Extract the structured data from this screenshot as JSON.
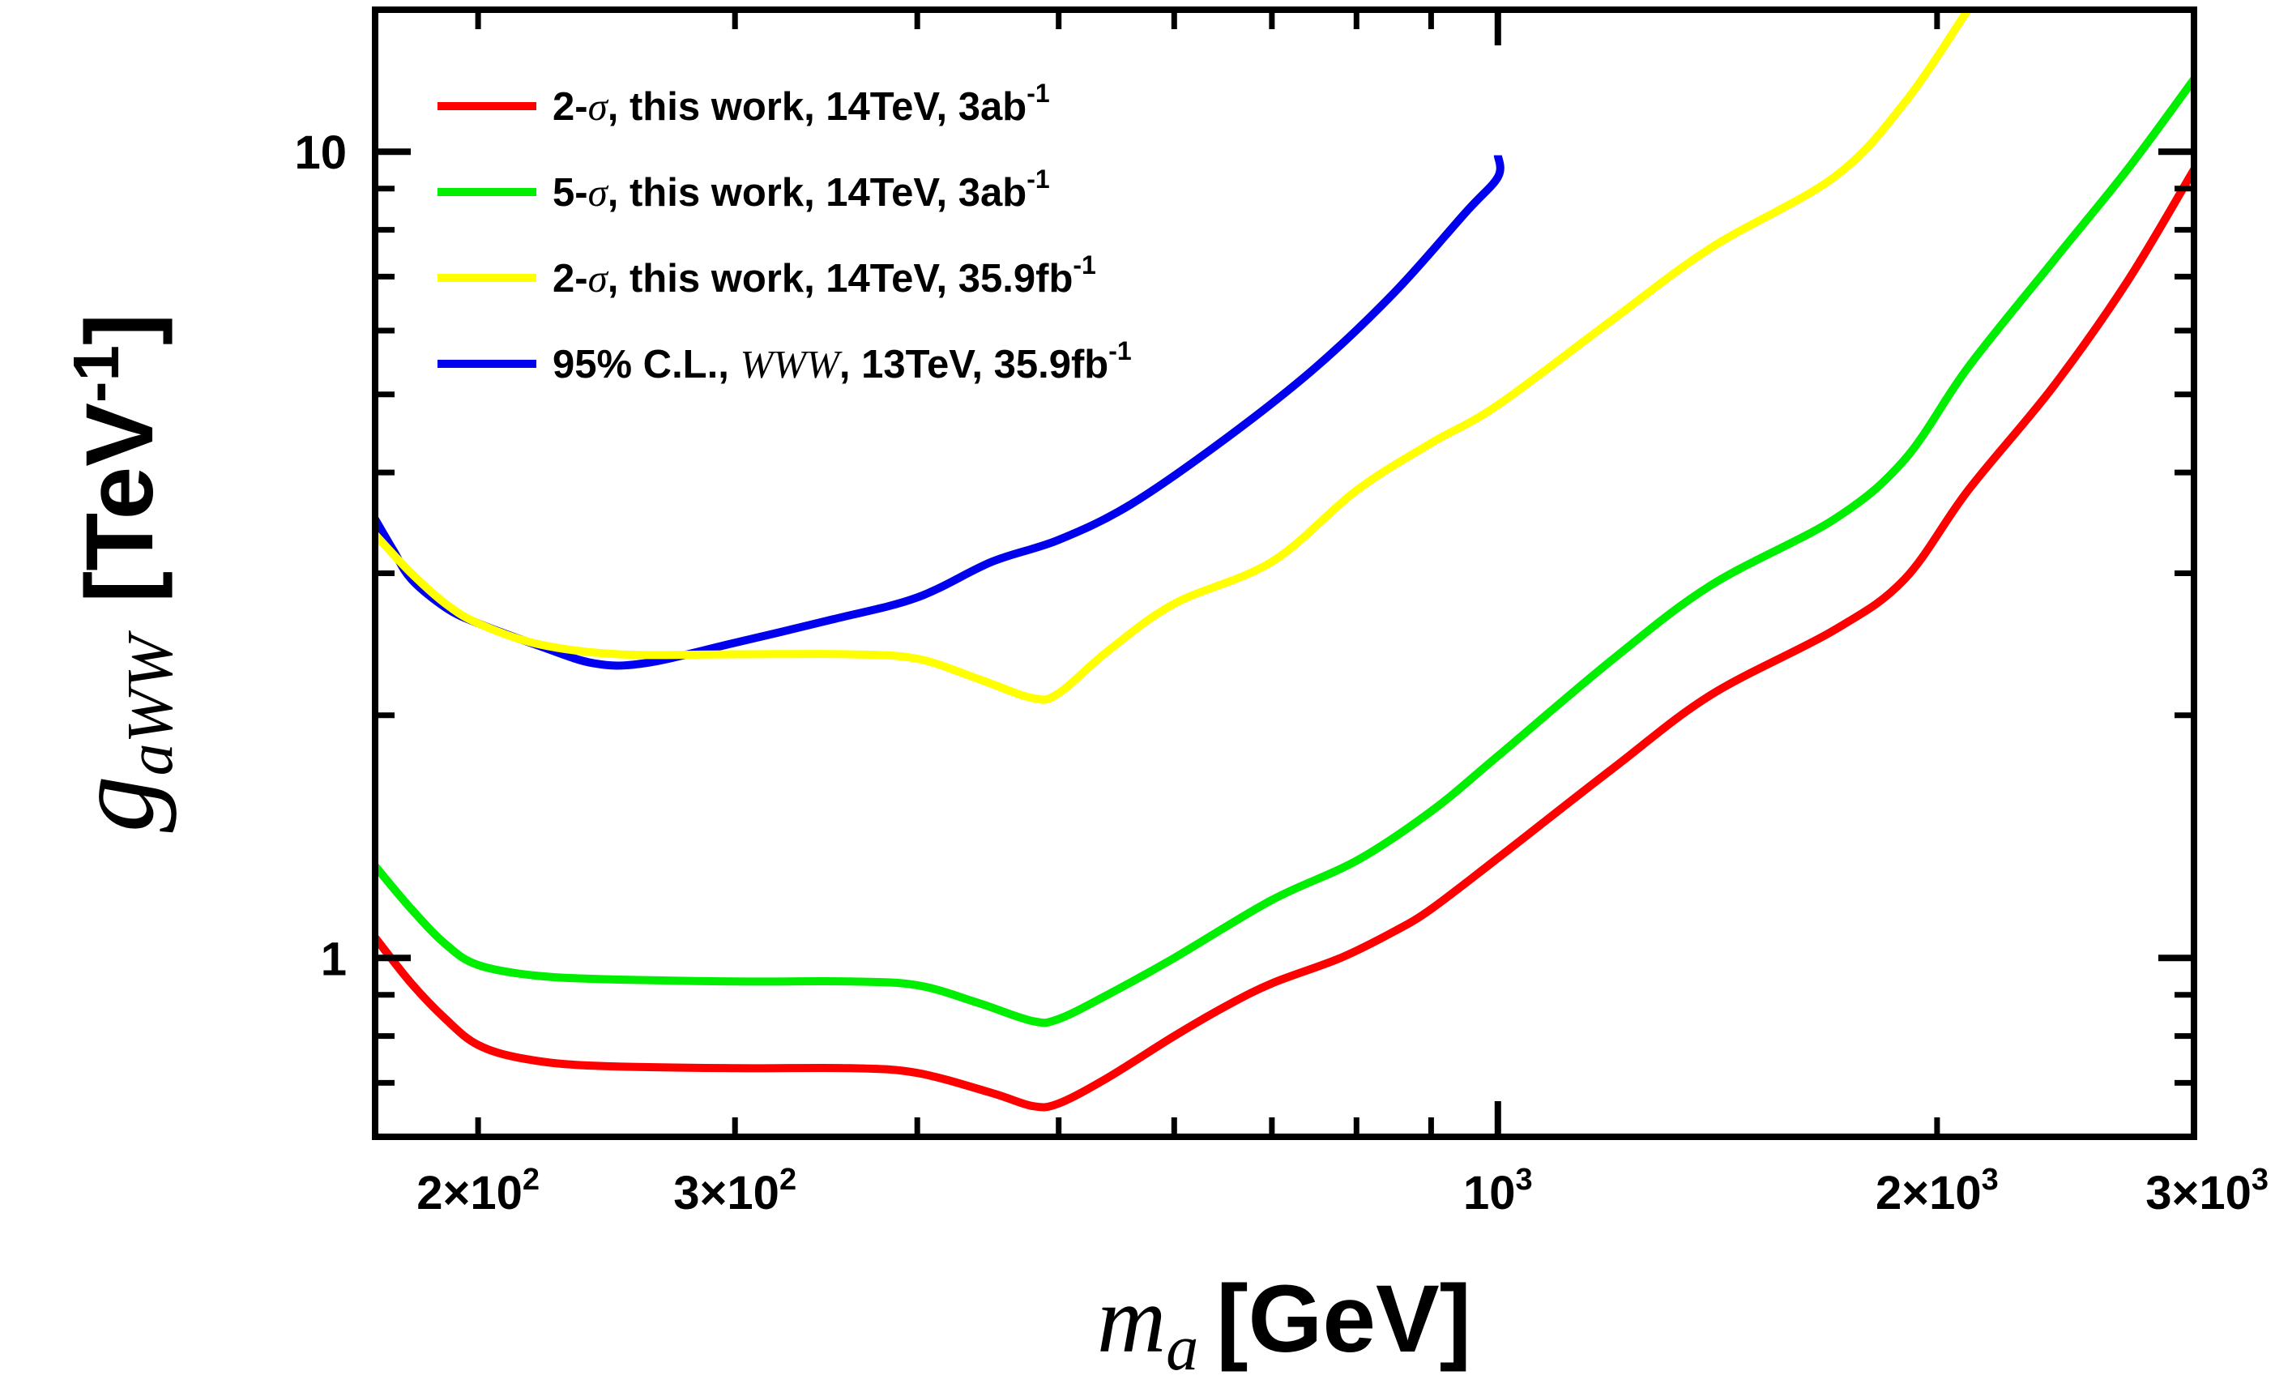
{
  "chart_data": {
    "type": "line",
    "xscale": "log",
    "yscale": "log",
    "xlim": [
      170,
      3000
    ],
    "ylim": [
      0.6,
      15
    ],
    "xlabel": {
      "var": "m",
      "sub": "a",
      "unit": "[GeV]"
    },
    "ylabel": {
      "var": "g",
      "sub": "aWW",
      "unit": "[TeV",
      "unit_sup": "-1",
      "unit_end": "]"
    },
    "xticks": [
      {
        "value": 200,
        "mant": "2×10",
        "exp": "2"
      },
      {
        "value": 300,
        "mant": "3×10",
        "exp": "2"
      },
      {
        "value": 1000,
        "mant": "10",
        "exp": "3"
      },
      {
        "value": 2000,
        "mant": "2×10",
        "exp": "3"
      },
      {
        "value": 3000,
        "mant": "3×10",
        "exp": "3"
      }
    ],
    "yticks": [
      {
        "value": 1,
        "label": "1"
      },
      {
        "value": 10,
        "label": "10"
      }
    ],
    "legend_position": "top-left",
    "grid": false,
    "series": [
      {
        "name": "2-σ, this work, 14TeV, 3ab-1",
        "legend": {
          "pre": "2-",
          "sym": "σ",
          "post": ", this work, 14TeV, 3ab",
          "sup": "-1"
        },
        "color": "#ff0000",
        "x": [
          170,
          180,
          190,
          200,
          215,
          240,
          300,
          360,
          400,
          450,
          480,
          500,
          540,
          600,
          650,
          700,
          780,
          850,
          900,
          1000,
          1200,
          1400,
          1700,
          1900,
          2100,
          2400,
          2700,
          3000
        ],
        "y": [
          1.06,
          0.93,
          0.84,
          0.78,
          0.75,
          0.735,
          0.73,
          0.73,
          0.72,
          0.68,
          0.655,
          0.66,
          0.71,
          0.8,
          0.87,
          0.93,
          1.0,
          1.08,
          1.15,
          1.33,
          1.72,
          2.12,
          2.55,
          2.95,
          3.8,
          5.1,
          6.9,
          9.5
        ]
      },
      {
        "name": "5-σ, this work, 14TeV, 3ab-1",
        "legend": {
          "pre": "5-",
          "sym": "σ",
          "post": ", this work, 14TeV, 3ab",
          "sup": "-1"
        },
        "color": "#00ee00",
        "x": [
          170,
          180,
          190,
          200,
          220,
          250,
          300,
          360,
          400,
          440,
          480,
          500,
          540,
          600,
          700,
          800,
          900,
          1000,
          1200,
          1400,
          1700,
          1900,
          2100,
          2400,
          2700,
          3000
        ],
        "y": [
          1.3,
          1.15,
          1.04,
          0.98,
          0.95,
          0.94,
          0.935,
          0.935,
          0.925,
          0.88,
          0.835,
          0.84,
          0.9,
          1.0,
          1.18,
          1.32,
          1.52,
          1.78,
          2.35,
          2.9,
          3.5,
          4.15,
          5.4,
          7.3,
          9.5,
          12.3
        ]
      },
      {
        "name": "2-σ, this work, 14TeV, 35.9fb-1",
        "legend": {
          "pre": "2-",
          "sym": "σ",
          "post": ", this work, 14TeV, 35.9fb",
          "sup": "-1"
        },
        "color": "#ffff00",
        "x": [
          170,
          180,
          190,
          200,
          220,
          250,
          300,
          360,
          400,
          440,
          480,
          500,
          540,
          600,
          700,
          800,
          900,
          1000,
          1200,
          1400,
          1700,
          1900,
          2100
        ],
        "y": [
          3.35,
          3.0,
          2.75,
          2.6,
          2.45,
          2.38,
          2.38,
          2.38,
          2.35,
          2.22,
          2.1,
          2.13,
          2.4,
          2.75,
          3.1,
          3.8,
          4.35,
          4.85,
          6.2,
          7.6,
          9.3,
          11.5,
          15
        ]
      },
      {
        "name": "95% C.L., WWW, 13TeV, 35.9fb-1",
        "legend": {
          "pre": "95% C.L., ",
          "sym": "WWW",
          "post": ", 13TeV, 35.9fb",
          "sup": "-1"
        },
        "color": "#0000ee",
        "x": [
          170,
          175,
          180,
          190,
          200,
          220,
          240,
          260,
          300,
          350,
          400,
          450,
          500,
          560,
          650,
          750,
          850,
          950,
          1000,
          1000
        ],
        "y": [
          3.5,
          3.2,
          2.95,
          2.72,
          2.6,
          2.44,
          2.32,
          2.32,
          2.46,
          2.63,
          2.8,
          3.1,
          3.3,
          3.65,
          4.4,
          5.4,
          6.7,
          8.4,
          9.3,
          9.9
        ]
      }
    ]
  }
}
